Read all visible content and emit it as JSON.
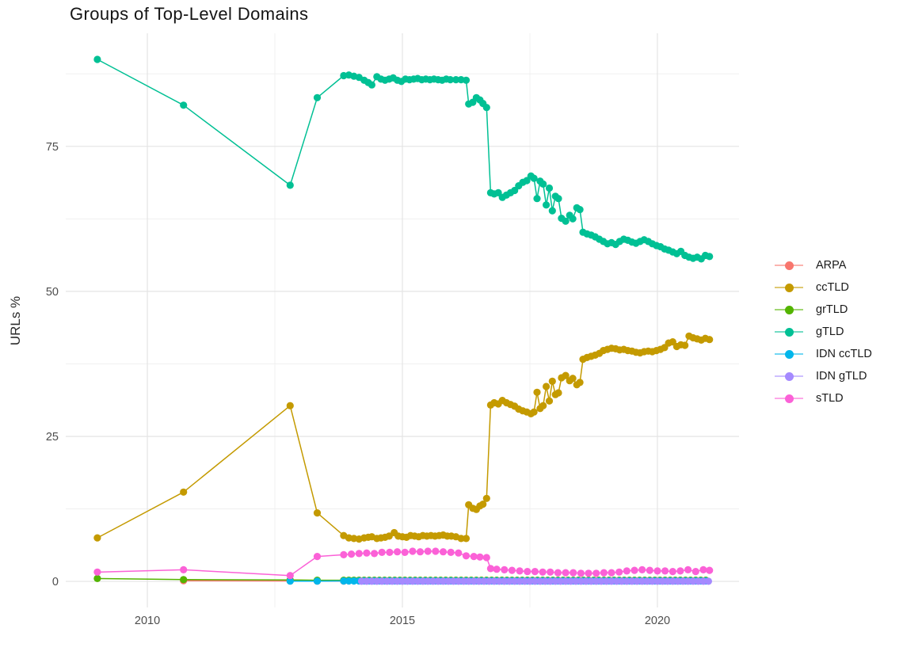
{
  "title": "Groups of Top-Level Domains",
  "colors": {
    "background": "#ffffff",
    "grid_major": "#e4e4e4",
    "grid_minor": "#f0f0f0",
    "axis_text": "#4d4d4d",
    "title_text": "#141414",
    "legend_text": "#1a1a1a"
  },
  "chart_data": {
    "type": "line",
    "title": "Groups of Top-Level Domains",
    "xlabel": "",
    "ylabel": "URLs %",
    "xlim": [
      2008.4,
      2021.6
    ],
    "ylim": [
      -4.5,
      94.5
    ],
    "x_ticks": [
      2010,
      2015,
      2020
    ],
    "x_minor_ticks": [
      2012.5,
      2017.5
    ],
    "y_ticks": [
      0,
      25,
      50,
      75
    ],
    "y_minor_ticks": [
      12.5,
      37.5,
      62.5,
      87.5
    ],
    "grid": true,
    "legend_position": "right",
    "series": [
      {
        "name": "ARPA",
        "color": "#F8766D",
        "points": [
          [
            2010.71,
            0.12
          ],
          [
            2012.8,
            0.08
          ],
          [
            2013.33,
            0.05
          ],
          [
            2013.85,
            0.05
          ]
        ]
      },
      {
        "name": "ccTLD",
        "color": "#C49A00",
        "points": [
          [
            2009.02,
            7.5
          ],
          [
            2010.71,
            15.4
          ],
          [
            2012.8,
            30.3
          ],
          [
            2013.33,
            11.8
          ],
          [
            2013.85,
            7.9
          ],
          [
            2013.95,
            7.5
          ],
          [
            2014.05,
            7.4
          ],
          [
            2014.15,
            7.3
          ],
          [
            2014.25,
            7.5
          ],
          [
            2014.33,
            7.6
          ],
          [
            2014.4,
            7.7
          ],
          [
            2014.5,
            7.4
          ],
          [
            2014.58,
            7.5
          ],
          [
            2014.66,
            7.6
          ],
          [
            2014.74,
            7.8
          ],
          [
            2014.84,
            8.4
          ],
          [
            2014.92,
            7.8
          ],
          [
            2015.0,
            7.7
          ],
          [
            2015.08,
            7.6
          ],
          [
            2015.16,
            7.9
          ],
          [
            2015.24,
            7.8
          ],
          [
            2015.32,
            7.7
          ],
          [
            2015.4,
            7.9
          ],
          [
            2015.48,
            7.8
          ],
          [
            2015.56,
            7.9
          ],
          [
            2015.64,
            7.8
          ],
          [
            2015.72,
            7.9
          ],
          [
            2015.8,
            8.0
          ],
          [
            2015.88,
            7.8
          ],
          [
            2015.96,
            7.8
          ],
          [
            2016.05,
            7.7
          ],
          [
            2016.15,
            7.4
          ],
          [
            2016.25,
            7.4
          ],
          [
            2016.3,
            13.2
          ],
          [
            2016.38,
            12.6
          ],
          [
            2016.45,
            12.4
          ],
          [
            2016.52,
            13.0
          ],
          [
            2016.58,
            13.3
          ],
          [
            2016.65,
            14.3
          ],
          [
            2016.73,
            30.4
          ],
          [
            2016.8,
            30.8
          ],
          [
            2016.88,
            30.6
          ],
          [
            2016.96,
            31.2
          ],
          [
            2017.04,
            30.8
          ],
          [
            2017.12,
            30.5
          ],
          [
            2017.2,
            30.2
          ],
          [
            2017.28,
            29.7
          ],
          [
            2017.36,
            29.4
          ],
          [
            2017.44,
            29.2
          ],
          [
            2017.52,
            28.9
          ],
          [
            2017.58,
            29.2
          ],
          [
            2017.64,
            32.6
          ],
          [
            2017.7,
            29.8
          ],
          [
            2017.76,
            30.3
          ],
          [
            2017.82,
            33.6
          ],
          [
            2017.88,
            31.1
          ],
          [
            2017.94,
            34.5
          ],
          [
            2018.0,
            32.2
          ],
          [
            2018.06,
            32.5
          ],
          [
            2018.12,
            35.1
          ],
          [
            2018.2,
            35.5
          ],
          [
            2018.28,
            34.6
          ],
          [
            2018.34,
            35.0
          ],
          [
            2018.42,
            33.9
          ],
          [
            2018.48,
            34.3
          ],
          [
            2018.54,
            38.3
          ],
          [
            2018.62,
            38.6
          ],
          [
            2018.7,
            38.8
          ],
          [
            2018.78,
            39.0
          ],
          [
            2018.86,
            39.3
          ],
          [
            2018.94,
            39.8
          ],
          [
            2019.02,
            40.0
          ],
          [
            2019.1,
            40.2
          ],
          [
            2019.18,
            40.1
          ],
          [
            2019.26,
            39.9
          ],
          [
            2019.34,
            40.0
          ],
          [
            2019.42,
            39.8
          ],
          [
            2019.5,
            39.7
          ],
          [
            2019.58,
            39.5
          ],
          [
            2019.66,
            39.4
          ],
          [
            2019.74,
            39.6
          ],
          [
            2019.82,
            39.7
          ],
          [
            2019.9,
            39.6
          ],
          [
            2019.98,
            39.8
          ],
          [
            2020.06,
            40.0
          ],
          [
            2020.14,
            40.3
          ],
          [
            2020.22,
            41.1
          ],
          [
            2020.3,
            41.3
          ],
          [
            2020.38,
            40.5
          ],
          [
            2020.46,
            40.8
          ],
          [
            2020.54,
            40.7
          ],
          [
            2020.62,
            42.3
          ],
          [
            2020.7,
            42.0
          ],
          [
            2020.78,
            41.8
          ],
          [
            2020.86,
            41.6
          ],
          [
            2020.94,
            41.9
          ],
          [
            2021.02,
            41.7
          ]
        ]
      },
      {
        "name": "grTLD",
        "color": "#53B400",
        "points": [
          [
            2009.02,
            0.5
          ],
          [
            2010.71,
            0.3
          ],
          [
            2012.8,
            0.25
          ],
          [
            2013.33,
            0.2
          ]
        ],
        "flat": {
          "from": 2013.85,
          "to": 2021.02,
          "step": 0.1,
          "value": 0.2
        }
      },
      {
        "name": "gTLD",
        "color": "#00C094",
        "points": [
          [
            2009.02,
            90.0
          ],
          [
            2010.71,
            82.1
          ],
          [
            2012.8,
            68.3
          ],
          [
            2013.33,
            83.4
          ],
          [
            2013.85,
            87.2
          ],
          [
            2013.95,
            87.3
          ],
          [
            2014.05,
            87.1
          ],
          [
            2014.15,
            86.9
          ],
          [
            2014.25,
            86.4
          ],
          [
            2014.33,
            86.0
          ],
          [
            2014.4,
            85.6
          ],
          [
            2014.5,
            87.0
          ],
          [
            2014.58,
            86.6
          ],
          [
            2014.66,
            86.4
          ],
          [
            2014.74,
            86.6
          ],
          [
            2014.82,
            86.8
          ],
          [
            2014.9,
            86.4
          ],
          [
            2014.98,
            86.2
          ],
          [
            2015.06,
            86.6
          ],
          [
            2015.14,
            86.5
          ],
          [
            2015.22,
            86.6
          ],
          [
            2015.3,
            86.7
          ],
          [
            2015.38,
            86.5
          ],
          [
            2015.46,
            86.6
          ],
          [
            2015.54,
            86.5
          ],
          [
            2015.62,
            86.6
          ],
          [
            2015.7,
            86.5
          ],
          [
            2015.78,
            86.4
          ],
          [
            2015.86,
            86.6
          ],
          [
            2015.94,
            86.5
          ],
          [
            2016.05,
            86.5
          ],
          [
            2016.15,
            86.5
          ],
          [
            2016.25,
            86.4
          ],
          [
            2016.3,
            82.3
          ],
          [
            2016.38,
            82.6
          ],
          [
            2016.45,
            83.4
          ],
          [
            2016.52,
            83.0
          ],
          [
            2016.58,
            82.4
          ],
          [
            2016.65,
            81.7
          ],
          [
            2016.73,
            67.0
          ],
          [
            2016.8,
            66.8
          ],
          [
            2016.88,
            67.0
          ],
          [
            2016.96,
            66.2
          ],
          [
            2017.04,
            66.6
          ],
          [
            2017.12,
            67.0
          ],
          [
            2017.2,
            67.4
          ],
          [
            2017.28,
            68.2
          ],
          [
            2017.36,
            68.8
          ],
          [
            2017.44,
            69.1
          ],
          [
            2017.52,
            69.9
          ],
          [
            2017.58,
            69.5
          ],
          [
            2017.64,
            66.0
          ],
          [
            2017.7,
            69.0
          ],
          [
            2017.76,
            68.5
          ],
          [
            2017.82,
            64.9
          ],
          [
            2017.88,
            67.8
          ],
          [
            2017.94,
            63.9
          ],
          [
            2018.0,
            66.4
          ],
          [
            2018.06,
            66.0
          ],
          [
            2018.12,
            62.6
          ],
          [
            2018.2,
            62.1
          ],
          [
            2018.28,
            63.1
          ],
          [
            2018.34,
            62.5
          ],
          [
            2018.42,
            64.4
          ],
          [
            2018.48,
            64.1
          ],
          [
            2018.54,
            60.2
          ],
          [
            2018.62,
            59.9
          ],
          [
            2018.7,
            59.7
          ],
          [
            2018.78,
            59.4
          ],
          [
            2018.86,
            59.0
          ],
          [
            2018.94,
            58.6
          ],
          [
            2019.02,
            58.2
          ],
          [
            2019.1,
            58.4
          ],
          [
            2019.18,
            58.1
          ],
          [
            2019.26,
            58.6
          ],
          [
            2019.34,
            59.0
          ],
          [
            2019.42,
            58.8
          ],
          [
            2019.5,
            58.5
          ],
          [
            2019.58,
            58.3
          ],
          [
            2019.66,
            58.6
          ],
          [
            2019.74,
            58.9
          ],
          [
            2019.82,
            58.6
          ],
          [
            2019.9,
            58.2
          ],
          [
            2019.98,
            57.9
          ],
          [
            2020.06,
            57.7
          ],
          [
            2020.14,
            57.3
          ],
          [
            2020.22,
            57.1
          ],
          [
            2020.3,
            56.8
          ],
          [
            2020.38,
            56.5
          ],
          [
            2020.46,
            56.9
          ],
          [
            2020.54,
            56.2
          ],
          [
            2020.62,
            55.9
          ],
          [
            2020.7,
            55.7
          ],
          [
            2020.78,
            55.9
          ],
          [
            2020.86,
            55.6
          ],
          [
            2020.94,
            56.2
          ],
          [
            2021.02,
            56.0
          ]
        ]
      },
      {
        "name": "IDN ccTLD",
        "color": "#00B6EB",
        "points": [
          [
            2012.8,
            0.05
          ],
          [
            2013.33,
            0.05
          ]
        ],
        "flat": {
          "from": 2013.85,
          "to": 2021.02,
          "step": 0.1,
          "value": 0.07
        }
      },
      {
        "name": "IDN gTLD",
        "color": "#A58AFF",
        "points": [],
        "flat": {
          "from": 2014.2,
          "to": 2021.02,
          "step": 0.1,
          "value": 0.02
        }
      },
      {
        "name": "sTLD",
        "color": "#FB61D7",
        "points": [
          [
            2009.02,
            1.6
          ],
          [
            2010.71,
            2.0
          ],
          [
            2012.8,
            1.0
          ],
          [
            2013.33,
            4.3
          ],
          [
            2013.85,
            4.6
          ],
          [
            2014.0,
            4.7
          ],
          [
            2014.15,
            4.8
          ],
          [
            2014.3,
            4.9
          ],
          [
            2014.45,
            4.8
          ],
          [
            2014.6,
            5.0
          ],
          [
            2014.75,
            5.0
          ],
          [
            2014.9,
            5.1
          ],
          [
            2015.05,
            5.0
          ],
          [
            2015.2,
            5.2
          ],
          [
            2015.35,
            5.1
          ],
          [
            2015.5,
            5.2
          ],
          [
            2015.65,
            5.2
          ],
          [
            2015.8,
            5.1
          ],
          [
            2015.95,
            5.0
          ],
          [
            2016.1,
            4.9
          ],
          [
            2016.25,
            4.4
          ],
          [
            2016.4,
            4.3
          ],
          [
            2016.52,
            4.2
          ],
          [
            2016.65,
            4.1
          ],
          [
            2016.73,
            2.2
          ],
          [
            2016.85,
            2.1
          ],
          [
            2017.0,
            2.0
          ],
          [
            2017.15,
            1.9
          ],
          [
            2017.3,
            1.8
          ],
          [
            2017.45,
            1.7
          ],
          [
            2017.6,
            1.7
          ],
          [
            2017.75,
            1.6
          ],
          [
            2017.9,
            1.6
          ],
          [
            2018.05,
            1.5
          ],
          [
            2018.2,
            1.5
          ],
          [
            2018.35,
            1.5
          ],
          [
            2018.5,
            1.4
          ],
          [
            2018.65,
            1.4
          ],
          [
            2018.8,
            1.4
          ],
          [
            2018.95,
            1.5
          ],
          [
            2019.1,
            1.5
          ],
          [
            2019.25,
            1.6
          ],
          [
            2019.4,
            1.8
          ],
          [
            2019.55,
            1.9
          ],
          [
            2019.7,
            2.0
          ],
          [
            2019.85,
            1.9
          ],
          [
            2020.0,
            1.8
          ],
          [
            2020.15,
            1.8
          ],
          [
            2020.3,
            1.7
          ],
          [
            2020.45,
            1.8
          ],
          [
            2020.6,
            2.0
          ],
          [
            2020.75,
            1.7
          ],
          [
            2020.9,
            2.0
          ],
          [
            2021.02,
            1.9
          ]
        ]
      }
    ]
  }
}
